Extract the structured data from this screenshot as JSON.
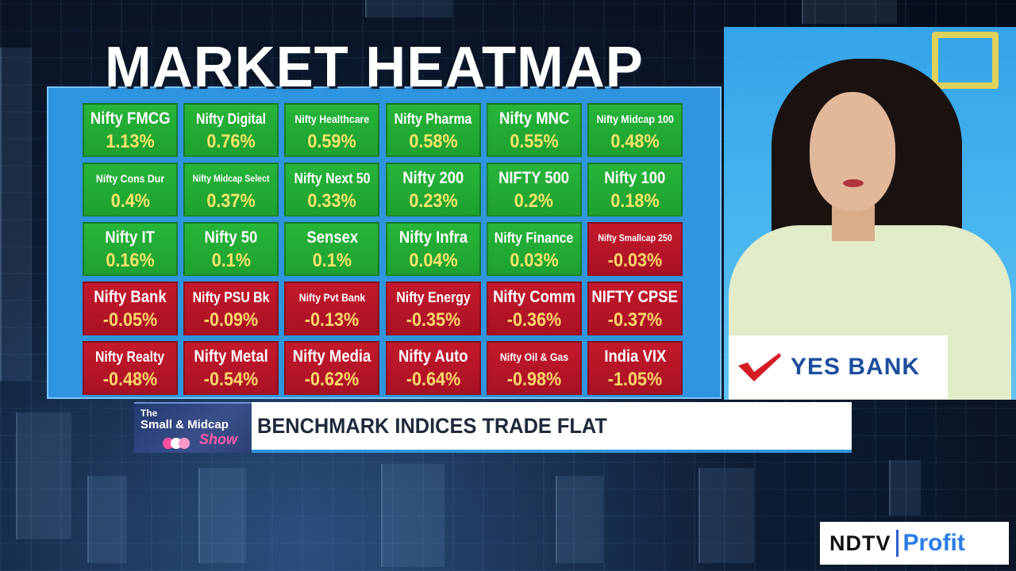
{
  "title": "MARKET HEATMAP",
  "colors": {
    "positive_tile": "#1ea02f",
    "negative_tile": "#b0162a",
    "percent_text": "#ffe56a",
    "panel": "#2f95de",
    "sponsor_brand": "#1c4e9e",
    "show_accent": "#ff5ba7"
  },
  "heatmap": {
    "tiles": [
      {
        "name": "Nifty FMCG",
        "change": "1.13%"
      },
      {
        "name": "Nifty Digital",
        "change": "0.76%"
      },
      {
        "name": "Nifty Healthcare",
        "change": "0.59%"
      },
      {
        "name": "Nifty Pharma",
        "change": "0.58%"
      },
      {
        "name": "Nifty MNC",
        "change": "0.55%"
      },
      {
        "name": "Nifty Midcap 100",
        "change": "0.48%"
      },
      {
        "name": "Nifty Cons Dur",
        "change": "0.4%"
      },
      {
        "name": "Nifty Midcap Select",
        "change": "0.37%"
      },
      {
        "name": "Nifty Next 50",
        "change": "0.33%"
      },
      {
        "name": "Nifty 200",
        "change": "0.23%"
      },
      {
        "name": "NIFTY 500",
        "change": "0.2%"
      },
      {
        "name": "Nifty 100",
        "change": "0.18%"
      },
      {
        "name": "Nifty IT",
        "change": "0.16%"
      },
      {
        "name": "Nifty 50",
        "change": "0.1%"
      },
      {
        "name": "Sensex",
        "change": "0.1%"
      },
      {
        "name": "Nifty Infra",
        "change": "0.04%"
      },
      {
        "name": "Nifty Finance",
        "change": "0.03%"
      },
      {
        "name": "Nifty Smallcap 250",
        "change": "-0.03%"
      },
      {
        "name": "Nifty Bank",
        "change": "-0.05%"
      },
      {
        "name": "Nifty PSU Bk",
        "change": "-0.09%"
      },
      {
        "name": "Nifty Pvt Bank",
        "change": "-0.13%"
      },
      {
        "name": "Nifty Energy",
        "change": "-0.35%"
      },
      {
        "name": "Nifty Comm",
        "change": "-0.36%"
      },
      {
        "name": "NIFTY CPSE",
        "change": "-0.37%"
      },
      {
        "name": "Nifty Realty",
        "change": "-0.48%"
      },
      {
        "name": "Nifty Metal",
        "change": "-0.54%"
      },
      {
        "name": "Nifty Media",
        "change": "-0.62%"
      },
      {
        "name": "Nifty Auto",
        "change": "-0.64%"
      },
      {
        "name": "Nifty Oil & Gas",
        "change": "-0.98%"
      },
      {
        "name": "India VIX",
        "change": "-1.05%"
      }
    ]
  },
  "sponsor": {
    "brand": "YES BANK"
  },
  "show": {
    "line1": "The",
    "line2": "Small & Midcap",
    "line3": "Show"
  },
  "ticker": {
    "headline": "BENCHMARK INDICES TRADE FLAT"
  },
  "channel": {
    "name": "NDTV",
    "sub": "Profit"
  }
}
